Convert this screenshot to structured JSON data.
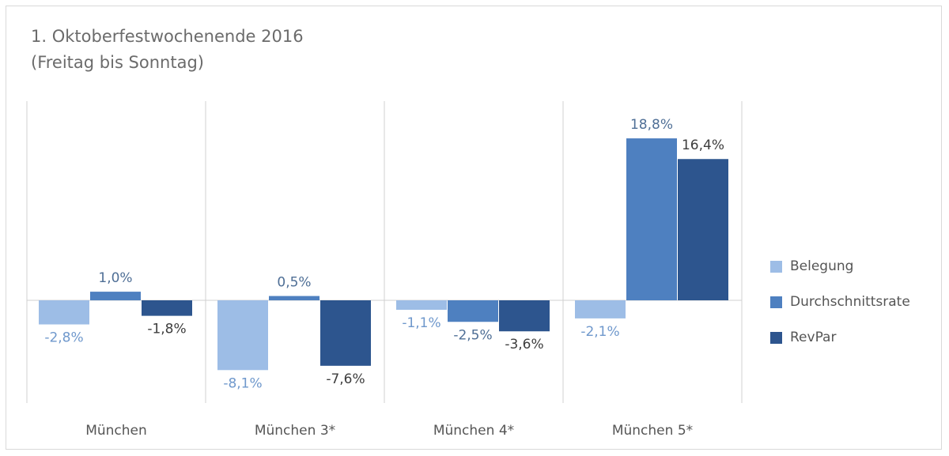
{
  "chart_data": {
    "type": "bar",
    "title": "1. Oktoberfestwochenende 2016\n(Freitag bis Sonntag)",
    "categories": [
      "München",
      "München 3*",
      "München 4*",
      "München 5*"
    ],
    "series": [
      {
        "name": "Belegung",
        "values": [
          -2.8,
          -8.1,
          -1.1,
          -2.1
        ],
        "labels": [
          "-2,8%",
          "-8,1%",
          "-1,1%",
          "-2,1%"
        ],
        "color": "#9dbde6",
        "label_color": "#6f98cc"
      },
      {
        "name": "Durchschnittsrate",
        "values": [
          1.0,
          0.5,
          -2.5,
          18.8
        ],
        "labels": [
          "1,0%",
          "0,5%",
          "-2,5%",
          "18,8%"
        ],
        "color": "#4e80c0",
        "label_color": "#4f6f96"
      },
      {
        "name": "RevPar",
        "values": [
          -1.8,
          -7.6,
          -3.6,
          16.4
        ],
        "labels": [
          "-1,8%",
          "-7,6%",
          "-3,6%",
          "16,4%"
        ],
        "color": "#2d558e",
        "label_color": "#3d3d3d"
      }
    ],
    "xlabel": "",
    "ylabel": "",
    "legend_position": "right",
    "grid": false,
    "colors": {
      "axis": "#d0d0d0",
      "category_label": "#555555",
      "title": "#6b6b6b"
    }
  }
}
